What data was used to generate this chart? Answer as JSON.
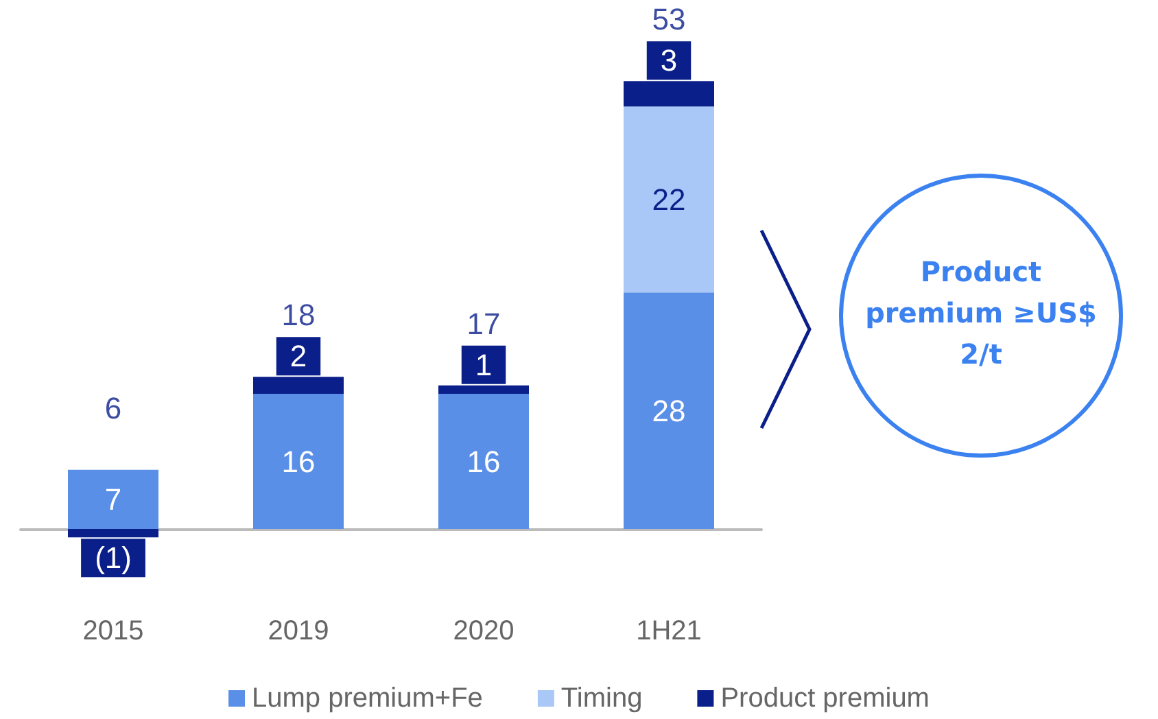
{
  "chart_data": {
    "type": "bar",
    "stacked": true,
    "categories": [
      "2015",
      "2019",
      "2020",
      "1H21"
    ],
    "series": [
      {
        "name": "Lump premium+Fe",
        "color": "#5a8fe8",
        "values": [
          7,
          16,
          16,
          28
        ],
        "value_labels": [
          "7",
          "16",
          "16",
          "28"
        ]
      },
      {
        "name": "Timing",
        "color": "#a9c8f7",
        "values": [
          null,
          null,
          null,
          22
        ],
        "value_labels": [
          null,
          null,
          null,
          "22"
        ]
      },
      {
        "name": "Product premium",
        "color": "#0b1f8a",
        "values": [
          -1,
          2,
          1,
          3
        ],
        "value_labels": [
          "(1)",
          "2",
          "1",
          "3"
        ]
      }
    ],
    "totals": [
      "6",
      "18",
      "17",
      "53"
    ],
    "annotations": [
      "Product premium ≥US$ 2/t"
    ],
    "legend": "bottom",
    "grid": false
  }
}
